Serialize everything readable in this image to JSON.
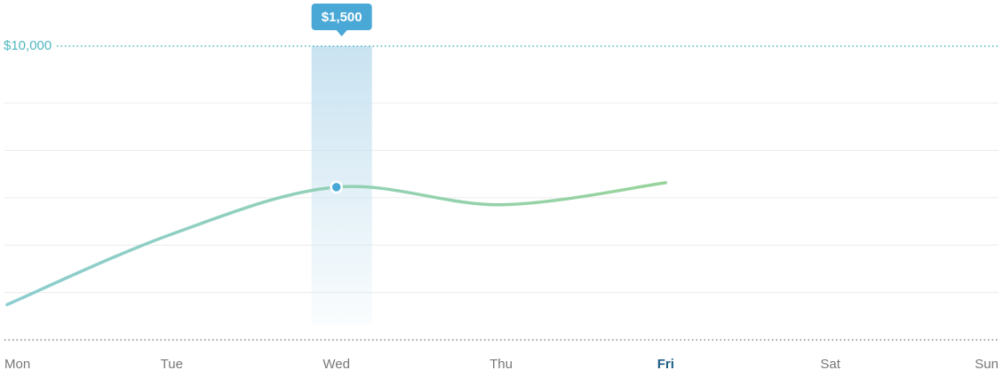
{
  "chart_data": {
    "type": "line",
    "categories": [
      "Mon",
      "Tue",
      "Wed",
      "Thu",
      "Fri",
      "Sat",
      "Sun"
    ],
    "series": [
      {
        "color_start": "#8ccdd0",
        "color_end": "#98d49c",
        "values": [
          1200,
          3600,
          5200,
          4600,
          5350,
          null,
          null
        ]
      }
    ],
    "ylim": [
      0,
      10000
    ],
    "yticks": [
      {
        "value": 10000,
        "label": "$10,000"
      }
    ],
    "highlighted_category": "Wed",
    "current_category": "Fri",
    "annotation": "$1,500",
    "grid": true
  }
}
